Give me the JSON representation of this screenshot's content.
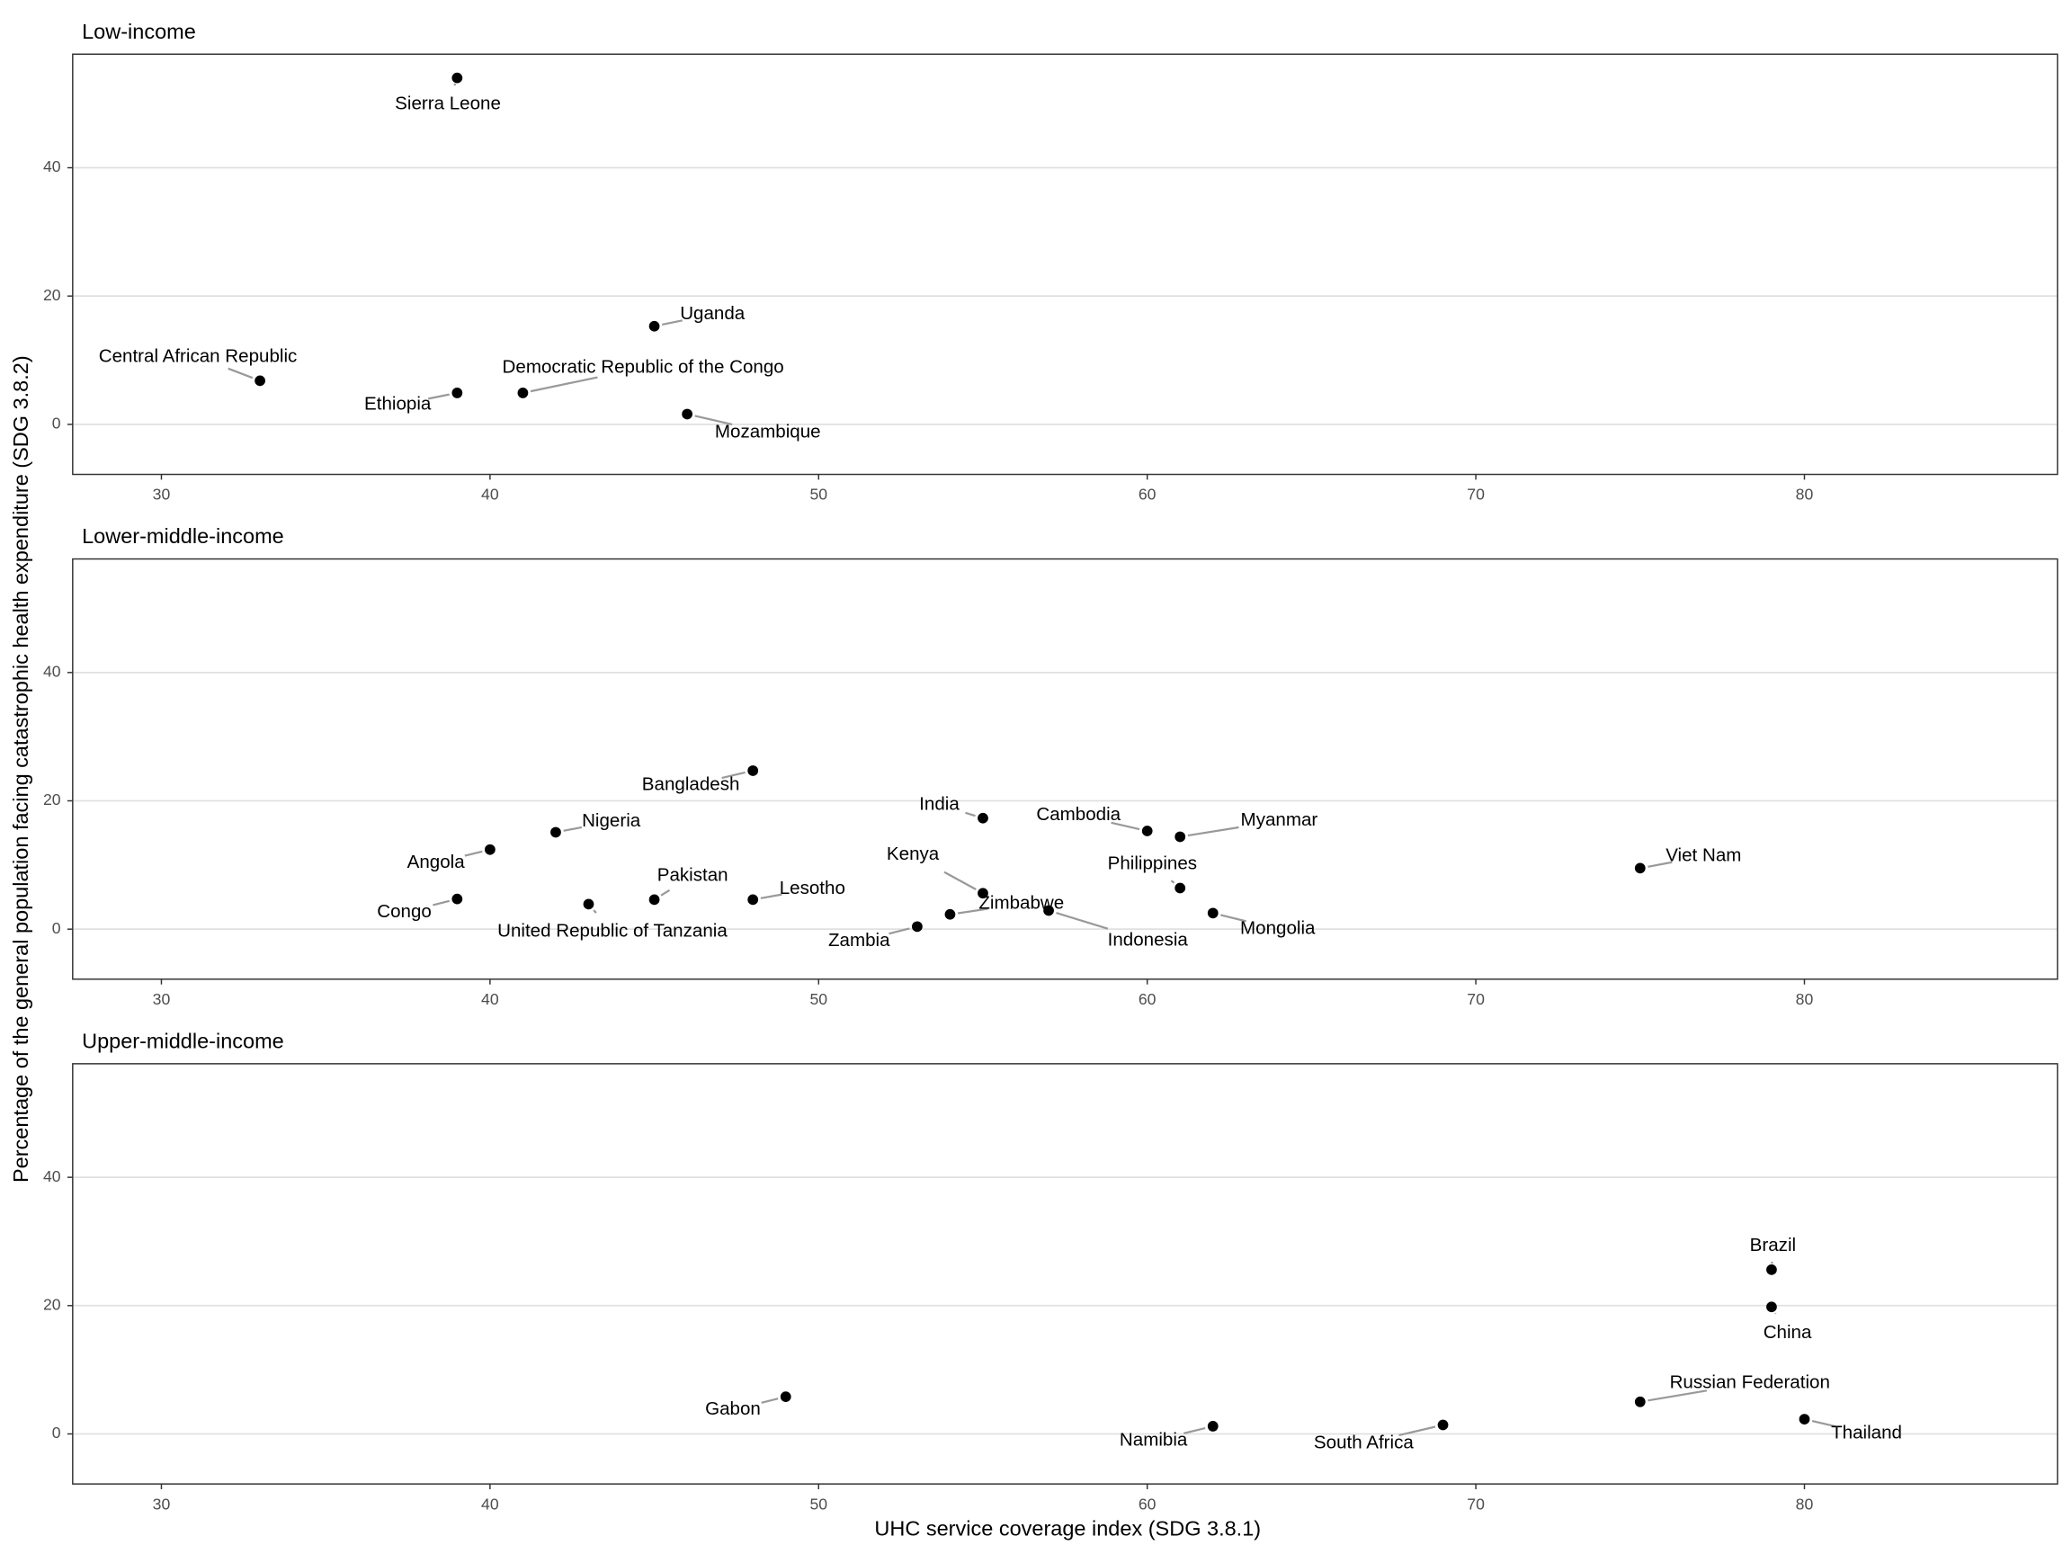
{
  "xlabel": "UHC service coverage index (SDG 3.8.1)",
  "ylabel": "Percentage of the general population facing catastrophic health expenditure (SDG 3.8.2)",
  "chart_data": [
    {
      "type": "scatter",
      "title": "Low-income",
      "color": "#000000",
      "grid": true,
      "labels": [
        "Sierra Leone",
        "Uganda",
        "Central African Republic",
        "Ethiopia",
        "Democratic Republic of the Congo",
        "Mozambique"
      ],
      "x": [
        39,
        45,
        33,
        39,
        41,
        46
      ],
      "values": [
        54.0,
        15.3,
        6.8,
        4.9,
        4.9,
        1.6
      ],
      "xlim": [
        27.3,
        87.7
      ],
      "ylim": [
        -7.8,
        57.7
      ],
      "xticks": [
        30,
        40,
        50,
        60,
        70,
        80
      ],
      "yticks": [
        0,
        20,
        40
      ]
    },
    {
      "type": "scatter",
      "title": "Lower-middle-income",
      "color": "#000000",
      "grid": true,
      "labels": [
        "Bangladesh",
        "India",
        "Nigeria",
        "Cambodia",
        "Myanmar",
        "Angola",
        "Viet Nam",
        "Philippines",
        "Kenya",
        "Congo",
        "Pakistan",
        "Lesotho",
        "United Republic of Tanzania",
        "Indonesia",
        "Mongolia",
        "Zimbabwe",
        "Zambia"
      ],
      "x": [
        48,
        55,
        42,
        60,
        61,
        40,
        75,
        61,
        55,
        39,
        45,
        48,
        43,
        57,
        62,
        54,
        53
      ],
      "values": [
        24.7,
        17.3,
        15.1,
        15.3,
        14.4,
        12.4,
        9.5,
        6.4,
        5.6,
        4.7,
        4.6,
        4.6,
        3.9,
        2.9,
        2.5,
        2.3,
        0.4
      ],
      "xlim": [
        27.3,
        87.7
      ],
      "ylim": [
        -7.8,
        57.7
      ],
      "xticks": [
        30,
        40,
        50,
        60,
        70,
        80
      ],
      "yticks": [
        0,
        20,
        40
      ]
    },
    {
      "type": "scatter",
      "title": "Upper-middle-income",
      "color": "#000000",
      "grid": true,
      "labels": [
        "Brazil",
        "China",
        "Gabon",
        "Russian Federation",
        "Thailand",
        "South Africa",
        "Namibia"
      ],
      "x": [
        79,
        79,
        49,
        75,
        80,
        69,
        62
      ],
      "values": [
        25.6,
        19.8,
        5.8,
        5.0,
        2.3,
        1.4,
        1.2
      ],
      "xlim": [
        27.3,
        87.7
      ],
      "ylim": [
        -7.8,
        57.7
      ],
      "xticks": [
        30,
        40,
        50,
        60,
        70,
        80
      ],
      "yticks": [
        0,
        20,
        40
      ]
    }
  ]
}
